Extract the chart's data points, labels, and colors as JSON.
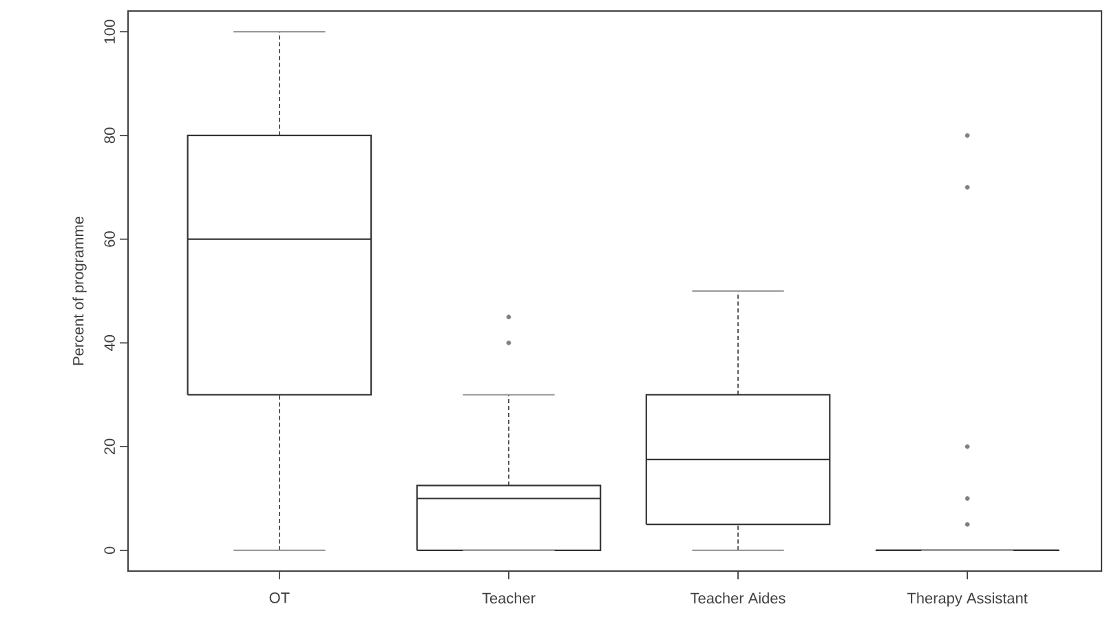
{
  "chart_data": {
    "type": "box",
    "ylabel": "Percent of programme",
    "categories": [
      "OT",
      "Teacher",
      "Teacher Aides",
      "Therapy Assistant"
    ],
    "color": "#333333",
    "boxes": [
      {
        "low": 0,
        "q1": 30,
        "median": 60,
        "q3": 80,
        "high": 100
      },
      {
        "low": 0,
        "q1": 0,
        "median": 10,
        "q3": 12.5,
        "high": 30,
        "outliers": [
          40,
          45
        ]
      },
      {
        "low": 0,
        "q1": 5,
        "median": 17.5,
        "q3": 30,
        "high": 50
      },
      {
        "low": 0,
        "q1": 0,
        "median": 0,
        "q3": 0,
        "high": 0,
        "outliers": [
          5,
          10,
          20,
          70,
          80
        ]
      }
    ],
    "ylim": [
      -4,
      104
    ],
    "yticks": [
      0,
      20,
      40,
      60,
      80,
      100
    ]
  }
}
